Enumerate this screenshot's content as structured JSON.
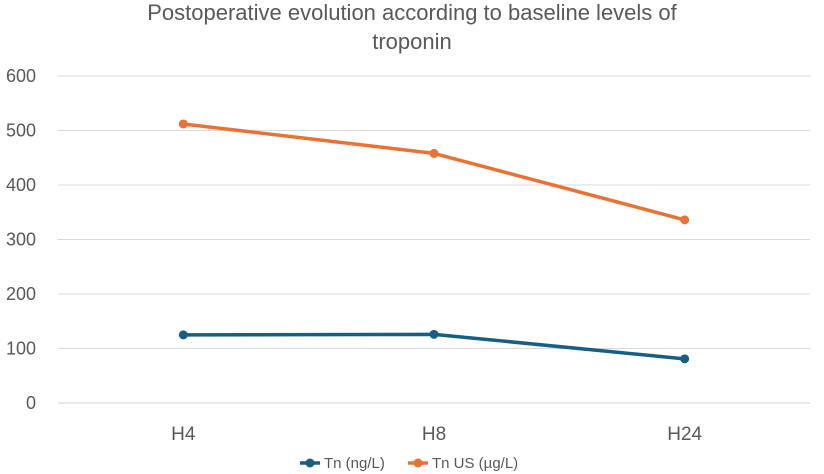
{
  "chart_data": {
    "type": "line",
    "title_lines": [
      "Postoperative evolution according to baseline levels of",
      "troponin"
    ],
    "categories": [
      "H4",
      "H8",
      "H24"
    ],
    "ylim": [
      0,
      600
    ],
    "yticks": [
      0,
      100,
      200,
      300,
      400,
      500,
      600
    ],
    "ytick_labels": [
      "0",
      "100",
      "200",
      "300",
      "400",
      "500",
      "600"
    ],
    "grid": true,
    "legend_position": "bottom",
    "series": [
      {
        "name": "Tn (ng/L)",
        "values": [
          125,
          126,
          81
        ],
        "color": "#156082"
      },
      {
        "name": "Tn US (µg/L)",
        "values": [
          512,
          458,
          336
        ],
        "color": "#E97132"
      }
    ]
  }
}
